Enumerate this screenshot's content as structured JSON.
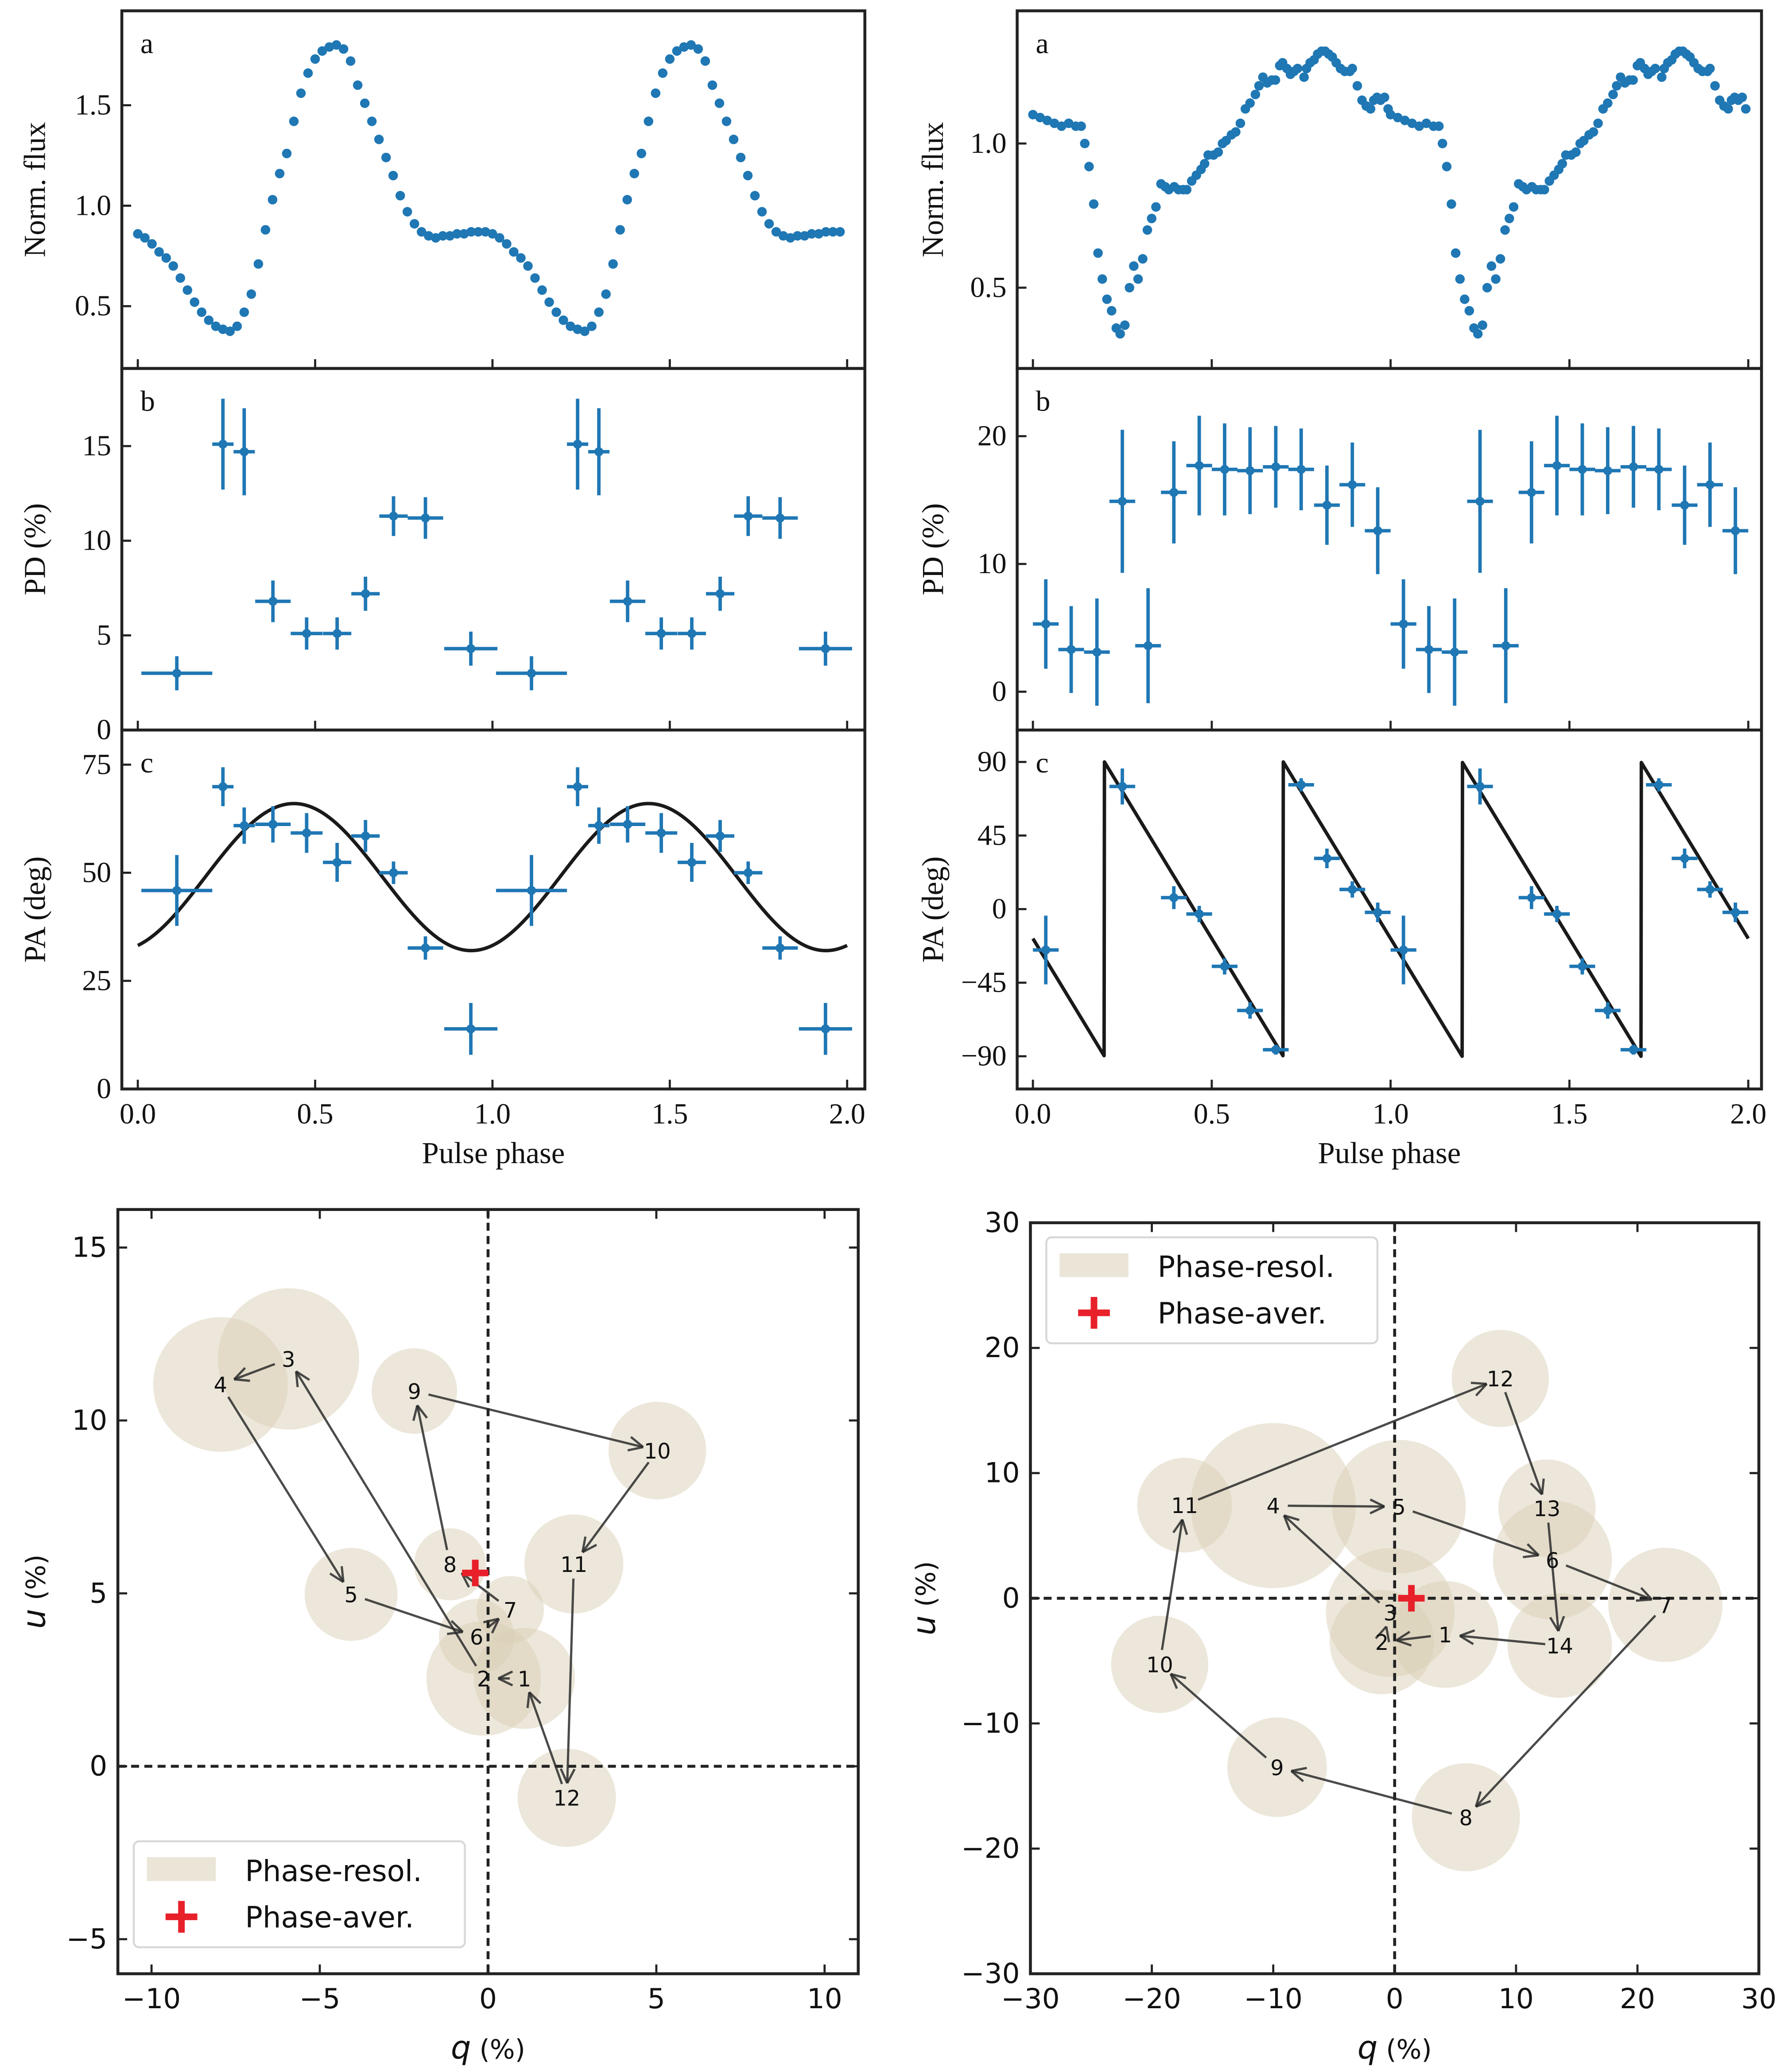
{
  "colors": {
    "data": "#1f77b4",
    "model": "#1a1a1a",
    "axis": "#222222",
    "circle_fill": "#d9d0b6",
    "arrow": "#2b2b2b",
    "average_cross": "#e8202a",
    "legend_border": "#d8d8d8"
  },
  "chart_data": [
    {
      "id": "left-flux",
      "type": "flux",
      "panel_label": "a",
      "ylabel": "Norm. flux",
      "xlabel": "",
      "xlim": [
        -0.045,
        2.05
      ],
      "ylim": [
        0.19,
        1.97
      ],
      "xticks": [
        0,
        0.5,
        1.0,
        1.5,
        2.0
      ],
      "xtick_labels": [],
      "yticks": [
        0.5,
        1.0,
        1.5
      ],
      "ytick_labels": [
        "0.5",
        "1.0",
        "1.5"
      ],
      "cycles": 2,
      "points": [
        [
          0.0,
          0.86
        ],
        [
          0.02,
          0.84
        ],
        [
          0.04,
          0.81
        ],
        [
          0.06,
          0.77
        ],
        [
          0.08,
          0.74
        ],
        [
          0.1,
          0.7
        ],
        [
          0.12,
          0.64
        ],
        [
          0.14,
          0.58
        ],
        [
          0.16,
          0.52
        ],
        [
          0.18,
          0.47
        ],
        [
          0.2,
          0.43
        ],
        [
          0.22,
          0.4
        ],
        [
          0.24,
          0.385
        ],
        [
          0.26,
          0.375
        ],
        [
          0.28,
          0.4
        ],
        [
          0.3,
          0.47
        ],
        [
          0.32,
          0.56
        ],
        [
          0.34,
          0.71
        ],
        [
          0.36,
          0.88
        ],
        [
          0.38,
          1.03
        ],
        [
          0.4,
          1.16
        ],
        [
          0.42,
          1.26
        ],
        [
          0.44,
          1.42
        ],
        [
          0.46,
          1.56
        ],
        [
          0.48,
          1.66
        ],
        [
          0.5,
          1.73
        ],
        [
          0.52,
          1.77
        ],
        [
          0.54,
          1.79
        ],
        [
          0.56,
          1.8
        ],
        [
          0.58,
          1.78
        ],
        [
          0.6,
          1.72
        ],
        [
          0.62,
          1.6
        ],
        [
          0.64,
          1.51
        ],
        [
          0.66,
          1.42
        ],
        [
          0.68,
          1.33
        ],
        [
          0.7,
          1.24
        ],
        [
          0.72,
          1.15
        ],
        [
          0.74,
          1.05
        ],
        [
          0.76,
          0.97
        ],
        [
          0.78,
          0.91
        ],
        [
          0.8,
          0.87
        ],
        [
          0.82,
          0.85
        ],
        [
          0.84,
          0.84
        ],
        [
          0.86,
          0.85
        ],
        [
          0.88,
          0.85
        ],
        [
          0.9,
          0.86
        ],
        [
          0.92,
          0.86
        ],
        [
          0.94,
          0.87
        ],
        [
          0.96,
          0.87
        ],
        [
          0.98,
          0.87
        ]
      ]
    },
    {
      "id": "left-pd",
      "type": "errorbar",
      "panel_label": "b",
      "ylabel": "PD (%)",
      "xlabel": "",
      "xlim": [
        -0.045,
        2.05
      ],
      "ylim": [
        0,
        19.1
      ],
      "xticks": [
        0,
        0.5,
        1.0,
        1.5,
        2.0
      ],
      "xtick_labels": [],
      "yticks": [
        0,
        5,
        10,
        15
      ],
      "ytick_labels": [
        "0",
        "5",
        "10",
        "15"
      ],
      "cycles": 2,
      "x": [
        0.11,
        0.24,
        0.3,
        0.381,
        0.476,
        0.562,
        0.642,
        0.721,
        0.811,
        0.939
      ],
      "xerr": [
        0.1,
        0.03,
        0.03,
        0.05,
        0.045,
        0.04,
        0.04,
        0.04,
        0.05,
        0.075
      ],
      "y": [
        3.0,
        15.1,
        14.7,
        6.8,
        5.1,
        5.1,
        7.2,
        11.3,
        11.2,
        4.3
      ],
      "yerr": [
        0.9,
        2.4,
        2.3,
        1.1,
        0.85,
        0.85,
        0.9,
        1.05,
        1.1,
        0.9
      ]
    },
    {
      "id": "left-pa",
      "type": "errorbar",
      "panel_label": "c",
      "ylabel": "PA (deg)",
      "xlabel": "Pulse phase",
      "xlim": [
        -0.045,
        2.05
      ],
      "ylim": [
        0,
        83
      ],
      "xticks": [
        0,
        0.5,
        1.0,
        1.5,
        2.0
      ],
      "xtick_labels": [
        "0.0",
        "0.5",
        "1.0",
        "1.5",
        "2.0"
      ],
      "yticks": [
        0,
        25,
        50,
        75
      ],
      "ytick_labels": [
        "0",
        "25",
        "50",
        "75"
      ],
      "cycles": 2,
      "x": [
        0.11,
        0.24,
        0.3,
        0.381,
        0.476,
        0.562,
        0.642,
        0.721,
        0.811,
        0.939
      ],
      "xerr": [
        0.1,
        0.03,
        0.03,
        0.05,
        0.045,
        0.04,
        0.04,
        0.04,
        0.05,
        0.075
      ],
      "y": [
        45.9,
        69.9,
        60.9,
        61.2,
        59.2,
        52.4,
        58.5,
        50.0,
        32.6,
        13.9
      ],
      "yerr": [
        8.2,
        4.5,
        4.2,
        4.2,
        4.6,
        4.5,
        3.7,
        2.6,
        2.7,
        6.0
      ],
      "model": {
        "type": "sinusoid",
        "mean": 49,
        "amplitude": 17,
        "peak_phase": 0.44,
        "period": 1.0,
        "range": [
          0,
          2
        ]
      }
    },
    {
      "id": "right-flux",
      "type": "flux",
      "panel_label": "a",
      "ylabel": "Norm. flux",
      "xlabel": "",
      "xlim": [
        -0.044,
        2.037
      ],
      "ylim": [
        0.22,
        1.46
      ],
      "xticks": [
        0,
        0.5,
        1.0,
        1.5,
        2.0
      ],
      "xtick_labels": [],
      "yticks": [
        0.5,
        1.0
      ],
      "ytick_labels": [
        "0.5",
        "1.0"
      ],
      "cycles": 2,
      "points": [
        [
          0.0,
          1.1
        ],
        [
          0.02,
          1.09
        ],
        [
          0.04,
          1.08
        ],
        [
          0.06,
          1.07
        ],
        [
          0.08,
          1.06
        ],
        [
          0.1,
          1.07
        ],
        [
          0.12,
          1.06
        ],
        [
          0.135,
          1.06
        ],
        [
          0.145,
          1.0
        ],
        [
          0.157,
          0.92
        ],
        [
          0.17,
          0.79
        ],
        [
          0.182,
          0.62
        ],
        [
          0.194,
          0.53
        ],
        [
          0.207,
          0.46
        ],
        [
          0.22,
          0.42
        ],
        [
          0.233,
          0.36
        ],
        [
          0.244,
          0.34
        ],
        [
          0.257,
          0.37
        ],
        [
          0.27,
          0.5
        ],
        [
          0.282,
          0.575
        ],
        [
          0.294,
          0.53
        ],
        [
          0.307,
          0.6
        ],
        [
          0.32,
          0.7
        ],
        [
          0.332,
          0.74
        ],
        [
          0.344,
          0.78
        ],
        [
          0.358,
          0.86
        ],
        [
          0.37,
          0.85
        ],
        [
          0.38,
          0.84
        ],
        [
          0.395,
          0.85
        ],
        [
          0.407,
          0.84
        ],
        [
          0.42,
          0.84
        ],
        [
          0.43,
          0.84
        ],
        [
          0.444,
          0.87
        ],
        [
          0.457,
          0.89
        ],
        [
          0.47,
          0.91
        ],
        [
          0.48,
          0.93
        ],
        [
          0.49,
          0.96
        ],
        [
          0.505,
          0.96
        ],
        [
          0.518,
          0.97
        ],
        [
          0.53,
          1.0
        ],
        [
          0.54,
          1.01
        ],
        [
          0.555,
          1.03
        ],
        [
          0.567,
          1.04
        ],
        [
          0.58,
          1.07
        ],
        [
          0.594,
          1.12
        ],
        [
          0.607,
          1.14
        ],
        [
          0.622,
          1.17
        ],
        [
          0.632,
          1.2
        ],
        [
          0.643,
          1.23
        ],
        [
          0.655,
          1.21
        ],
        [
          0.668,
          1.22
        ],
        [
          0.678,
          1.22
        ],
        [
          0.69,
          1.27
        ],
        [
          0.698,
          1.28
        ],
        [
          0.71,
          1.26
        ],
        [
          0.72,
          1.24
        ],
        [
          0.73,
          1.25
        ],
        [
          0.74,
          1.26
        ],
        [
          0.758,
          1.23
        ],
        [
          0.765,
          1.26
        ],
        [
          0.775,
          1.28
        ],
        [
          0.786,
          1.29
        ],
        [
          0.796,
          1.31
        ],
        [
          0.807,
          1.32
        ],
        [
          0.817,
          1.32
        ],
        [
          0.827,
          1.31
        ],
        [
          0.837,
          1.3
        ],
        [
          0.848,
          1.28
        ],
        [
          0.86,
          1.26
        ],
        [
          0.872,
          1.25
        ],
        [
          0.886,
          1.25
        ],
        [
          0.893,
          1.26
        ],
        [
          0.907,
          1.2
        ],
        [
          0.92,
          1.15
        ],
        [
          0.932,
          1.13
        ],
        [
          0.944,
          1.12
        ],
        [
          0.953,
          1.15
        ],
        [
          0.962,
          1.16
        ],
        [
          0.972,
          1.15
        ],
        [
          0.983,
          1.16
        ],
        [
          0.993,
          1.12
        ]
      ]
    },
    {
      "id": "right-pd",
      "type": "errorbar",
      "panel_label": "b",
      "ylabel": "PD (%)",
      "xlabel": "",
      "xlim": [
        -0.044,
        2.037
      ],
      "ylim": [
        -3.0,
        25.3
      ],
      "xticks": [
        0,
        0.5,
        1.0,
        1.5,
        2.0
      ],
      "xtick_labels": [],
      "yticks": [
        0,
        10,
        20
      ],
      "ytick_labels": [
        "0",
        "10",
        "20"
      ],
      "cycles": 2,
      "x": [
        0.036,
        0.107,
        0.179,
        0.25,
        0.322,
        0.394,
        0.465,
        0.536,
        0.607,
        0.679,
        0.75,
        0.822,
        0.893,
        0.964
      ],
      "xerr": [
        0.036,
        0.036,
        0.036,
        0.036,
        0.036,
        0.036,
        0.036,
        0.036,
        0.036,
        0.036,
        0.036,
        0.036,
        0.036,
        0.036
      ],
      "y": [
        5.3,
        3.3,
        3.1,
        14.9,
        3.6,
        15.6,
        17.7,
        17.4,
        17.3,
        17.6,
        17.4,
        14.6,
        16.2,
        12.6
      ],
      "yerr": [
        3.5,
        3.4,
        4.2,
        5.6,
        4.5,
        4.0,
        3.9,
        3.6,
        3.4,
        3.2,
        3.2,
        3.1,
        3.3,
        3.4
      ]
    },
    {
      "id": "right-pa",
      "type": "errorbar",
      "panel_label": "c",
      "ylabel": "PA (deg)",
      "xlabel": "Pulse phase",
      "xlim": [
        -0.044,
        2.037
      ],
      "ylim": [
        -110,
        109.5
      ],
      "xticks": [
        0,
        0.5,
        1.0,
        1.5,
        2.0
      ],
      "xtick_labels": [
        "0.0",
        "0.5",
        "1.0",
        "1.5",
        "2.0"
      ],
      "yticks": [
        -90,
        -45,
        0,
        45,
        90
      ],
      "ytick_labels": [
        "−90",
        "−45",
        "0",
        "45",
        "90"
      ],
      "cycles": 2,
      "x": [
        0.036,
        0.25,
        0.394,
        0.465,
        0.536,
        0.607,
        0.679,
        0.75,
        0.822,
        0.893,
        0.964
      ],
      "xerr": [
        0.036,
        0.036,
        0.036,
        0.036,
        0.036,
        0.036,
        0.036,
        0.036,
        0.036,
        0.036,
        0.036
      ],
      "y": [
        -25,
        75,
        7,
        -3,
        -35,
        -62,
        -86,
        76,
        31,
        12,
        -2
      ],
      "yerr": [
        21,
        11,
        7,
        5,
        5,
        5,
        3,
        4,
        6,
        5,
        6
      ],
      "model": {
        "type": "sawtooth",
        "max": 90,
        "min": -90,
        "jump_phase": 0.2,
        "period": 0.5,
        "range": [
          0,
          2
        ]
      }
    },
    {
      "id": "left-qu",
      "type": "qu",
      "xlabel_var": "q",
      "xlabel_unit": " (%)",
      "ylabel_var": "u",
      "ylabel_unit": " (%)",
      "xlim": [
        -11.0,
        11.0
      ],
      "ylim": [
        -6.0,
        16.1
      ],
      "xticks": [
        -10,
        -5,
        0,
        5,
        10
      ],
      "xtick_labels": [
        "−10",
        "−5",
        "0",
        "5",
        "10"
      ],
      "yticks": [
        -5,
        0,
        5,
        10,
        15
      ],
      "ytick_labels": [
        "−5",
        "0",
        "5",
        "10",
        "15"
      ],
      "points": [
        {
          "label": "1",
          "q": 1.08,
          "u": 2.54,
          "r": 1.5
        },
        {
          "label": "2",
          "q": -0.13,
          "u": 2.54,
          "r": 1.7
        },
        {
          "label": "3",
          "q": -5.93,
          "u": 11.78,
          "r": 2.1
        },
        {
          "label": "4",
          "q": -7.95,
          "u": 11.04,
          "r": 2.0
        },
        {
          "label": "5",
          "q": -4.07,
          "u": 4.97,
          "r": 1.38
        },
        {
          "label": "6",
          "q": -0.34,
          "u": 3.75,
          "r": 1.12
        },
        {
          "label": "7",
          "q": 0.66,
          "u": 4.53,
          "r": 1.0
        },
        {
          "label": "8",
          "q": -1.13,
          "u": 5.84,
          "r": 1.07
        },
        {
          "label": "9",
          "q": -2.19,
          "u": 10.85,
          "r": 1.27
        },
        {
          "label": "10",
          "q": 5.03,
          "u": 9.13,
          "r": 1.45
        },
        {
          "label": "11",
          "q": 2.55,
          "u": 5.85,
          "r": 1.47
        },
        {
          "label": "12",
          "q": 2.34,
          "u": -0.91,
          "r": 1.46
        }
      ],
      "average": {
        "q": -0.38,
        "u": 5.59
      },
      "legend": {
        "location": "lower-left",
        "entries": [
          "Phase-resol.",
          "Phase-aver."
        ]
      }
    },
    {
      "id": "right-qu",
      "type": "qu",
      "xlabel_var": "q",
      "xlabel_unit": " (%)",
      "ylabel_var": "u",
      "ylabel_unit": " (%)",
      "xlim": [
        -30,
        30
      ],
      "ylim": [
        -30,
        30
      ],
      "xticks": [
        -30,
        -20,
        -10,
        0,
        10,
        20,
        30
      ],
      "xtick_labels": [
        "−30",
        "−20",
        "−10",
        "0",
        "10",
        "20",
        "30"
      ],
      "yticks": [
        -30,
        -20,
        -10,
        0,
        10,
        20,
        30
      ],
      "ytick_labels": [
        "−30",
        "−20",
        "−10",
        "0",
        "10",
        "20",
        "30"
      ],
      "points": [
        {
          "label": "1",
          "q": 4.17,
          "u": -2.89,
          "r": 4.4
        },
        {
          "label": "2",
          "q": -1.05,
          "u": -3.5,
          "r": 4.3
        },
        {
          "label": "3",
          "q": -0.36,
          "u": -1.14,
          "r": 5.3
        },
        {
          "label": "4",
          "q": -10.0,
          "u": 7.4,
          "r": 6.8
        },
        {
          "label": "5",
          "q": 0.36,
          "u": 7.32,
          "r": 5.5
        },
        {
          "label": "6",
          "q": 13.0,
          "u": 3.05,
          "r": 4.9
        },
        {
          "label": "7",
          "q": 22.3,
          "u": -0.53,
          "r": 4.7
        },
        {
          "label": "8",
          "q": 5.87,
          "u": -17.5,
          "r": 4.45
        },
        {
          "label": "9",
          "q": -9.68,
          "u": -13.5,
          "r": 4.1
        },
        {
          "label": "10",
          "q": -19.35,
          "u": -5.28,
          "r": 4.0
        },
        {
          "label": "11",
          "q": -17.3,
          "u": 7.44,
          "r": 3.9
        },
        {
          "label": "12",
          "q": 8.7,
          "u": 17.56,
          "r": 4.0
        },
        {
          "label": "13",
          "q": 12.55,
          "u": 7.2,
          "r": 4.0
        },
        {
          "label": "14",
          "q": 13.6,
          "u": -3.78,
          "r": 4.3
        }
      ],
      "average": {
        "q": 1.38,
        "u": 0.0
      },
      "legend": {
        "location": "upper-left",
        "entries": [
          "Phase-resol.",
          "Phase-aver."
        ]
      }
    }
  ]
}
